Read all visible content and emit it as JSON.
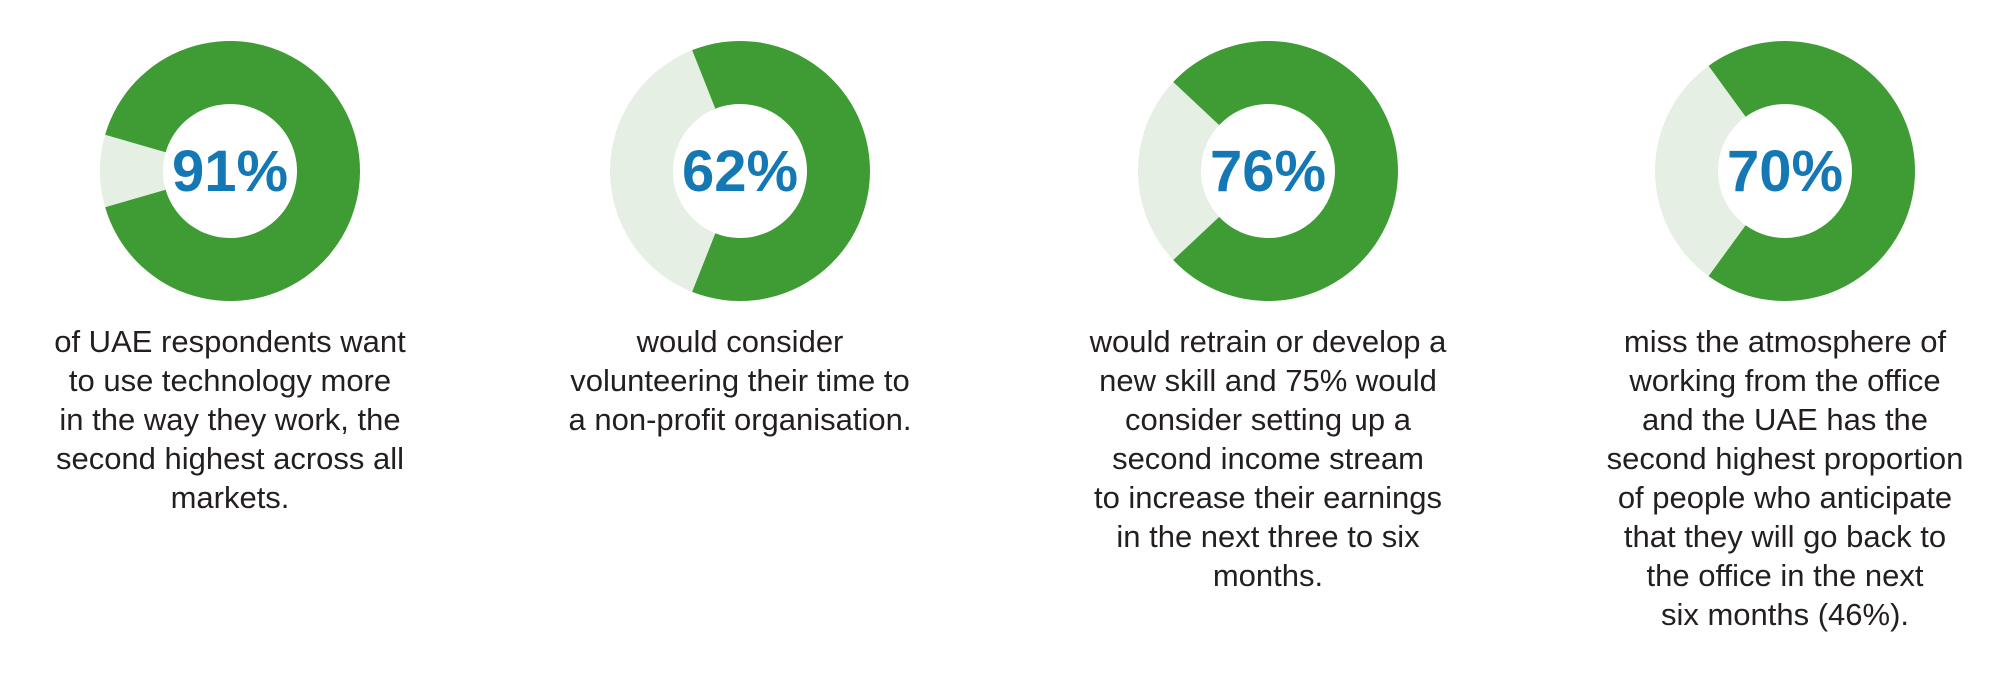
{
  "colors": {
    "filled": "#3f9c35",
    "remaining": "#e6efe4",
    "percent_text": "#1478b4",
    "body_text": "#231f20"
  },
  "chart_data": [
    {
      "type": "pie",
      "value": 91,
      "label": "91%",
      "description_lines": [
        "of UAE respondents want",
        "to use technology more",
        "in the way they work, the",
        "second highest across all",
        "markets."
      ]
    },
    {
      "type": "pie",
      "value": 62,
      "label": "62%",
      "description_lines": [
        "would consider",
        "volunteering their time to",
        "a non-profit organisation."
      ]
    },
    {
      "type": "pie",
      "value": 76,
      "label": "76%",
      "description_lines": [
        "would retrain or develop a",
        "new skill and 75% would",
        "consider setting up a",
        "second income stream",
        "to increase their earnings",
        "in the next three to six",
        "months."
      ]
    },
    {
      "type": "pie",
      "value": 70,
      "label": "70%",
      "description_lines": [
        "miss the atmosphere of",
        "working from the office",
        "and the UAE has the",
        "second highest proportion",
        "of people who anticipate",
        "that they will go back to",
        "the office in the next",
        "six months (46%)."
      ]
    }
  ]
}
